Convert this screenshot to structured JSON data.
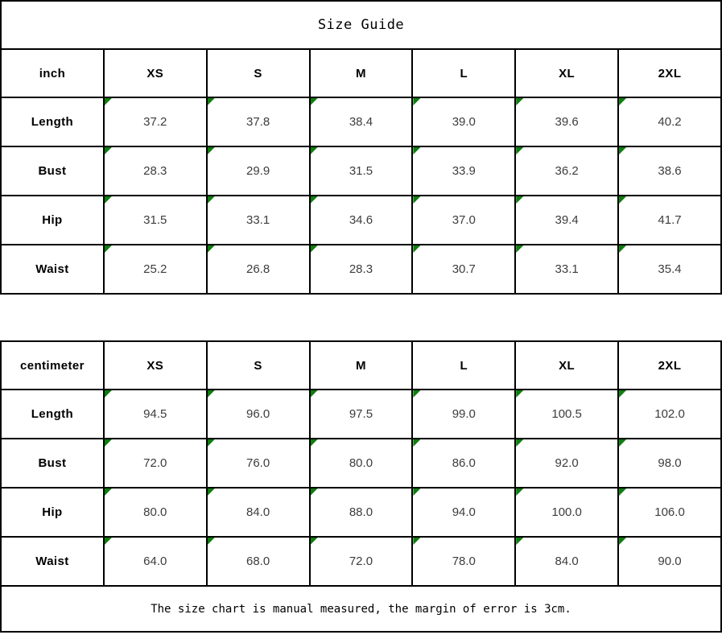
{
  "page_title": "Size Guide",
  "footer_note": "The size chart is manual measured, the margin of error is 3cm.",
  "colors": {
    "border": "#000000",
    "corner_flag_green": "#0e7e0e",
    "value_text": "#3d3d3d",
    "label_text": "#000000",
    "background": "#ffffff"
  },
  "inch_table": {
    "unit_label": "inch",
    "sizes": [
      "XS",
      "S",
      "M",
      "L",
      "XL",
      "2XL"
    ],
    "rows": [
      {
        "label": "Length",
        "values": [
          "37.2",
          "37.8",
          "38.4",
          "39.0",
          "39.6",
          "40.2"
        ]
      },
      {
        "label": "Bust",
        "values": [
          "28.3",
          "29.9",
          "31.5",
          "33.9",
          "36.2",
          "38.6"
        ]
      },
      {
        "label": "Hip",
        "values": [
          "31.5",
          "33.1",
          "34.6",
          "37.0",
          "39.4",
          "41.7"
        ]
      },
      {
        "label": "Waist",
        "values": [
          "25.2",
          "26.8",
          "28.3",
          "30.7",
          "33.1",
          "35.4"
        ]
      }
    ]
  },
  "cm_table": {
    "unit_label": "centimeter",
    "sizes": [
      "XS",
      "S",
      "M",
      "L",
      "XL",
      "2XL"
    ],
    "rows": [
      {
        "label": "Length",
        "values": [
          "94.5",
          "96.0",
          "97.5",
          "99.0",
          "100.5",
          "102.0"
        ]
      },
      {
        "label": "Bust",
        "values": [
          "72.0",
          "76.0",
          "80.0",
          "86.0",
          "92.0",
          "98.0"
        ]
      },
      {
        "label": "Hip",
        "values": [
          "80.0",
          "84.0",
          "88.0",
          "94.0",
          "100.0",
          "106.0"
        ]
      },
      {
        "label": "Waist",
        "values": [
          "64.0",
          "68.0",
          "72.0",
          "78.0",
          "84.0",
          "90.0"
        ]
      }
    ]
  }
}
